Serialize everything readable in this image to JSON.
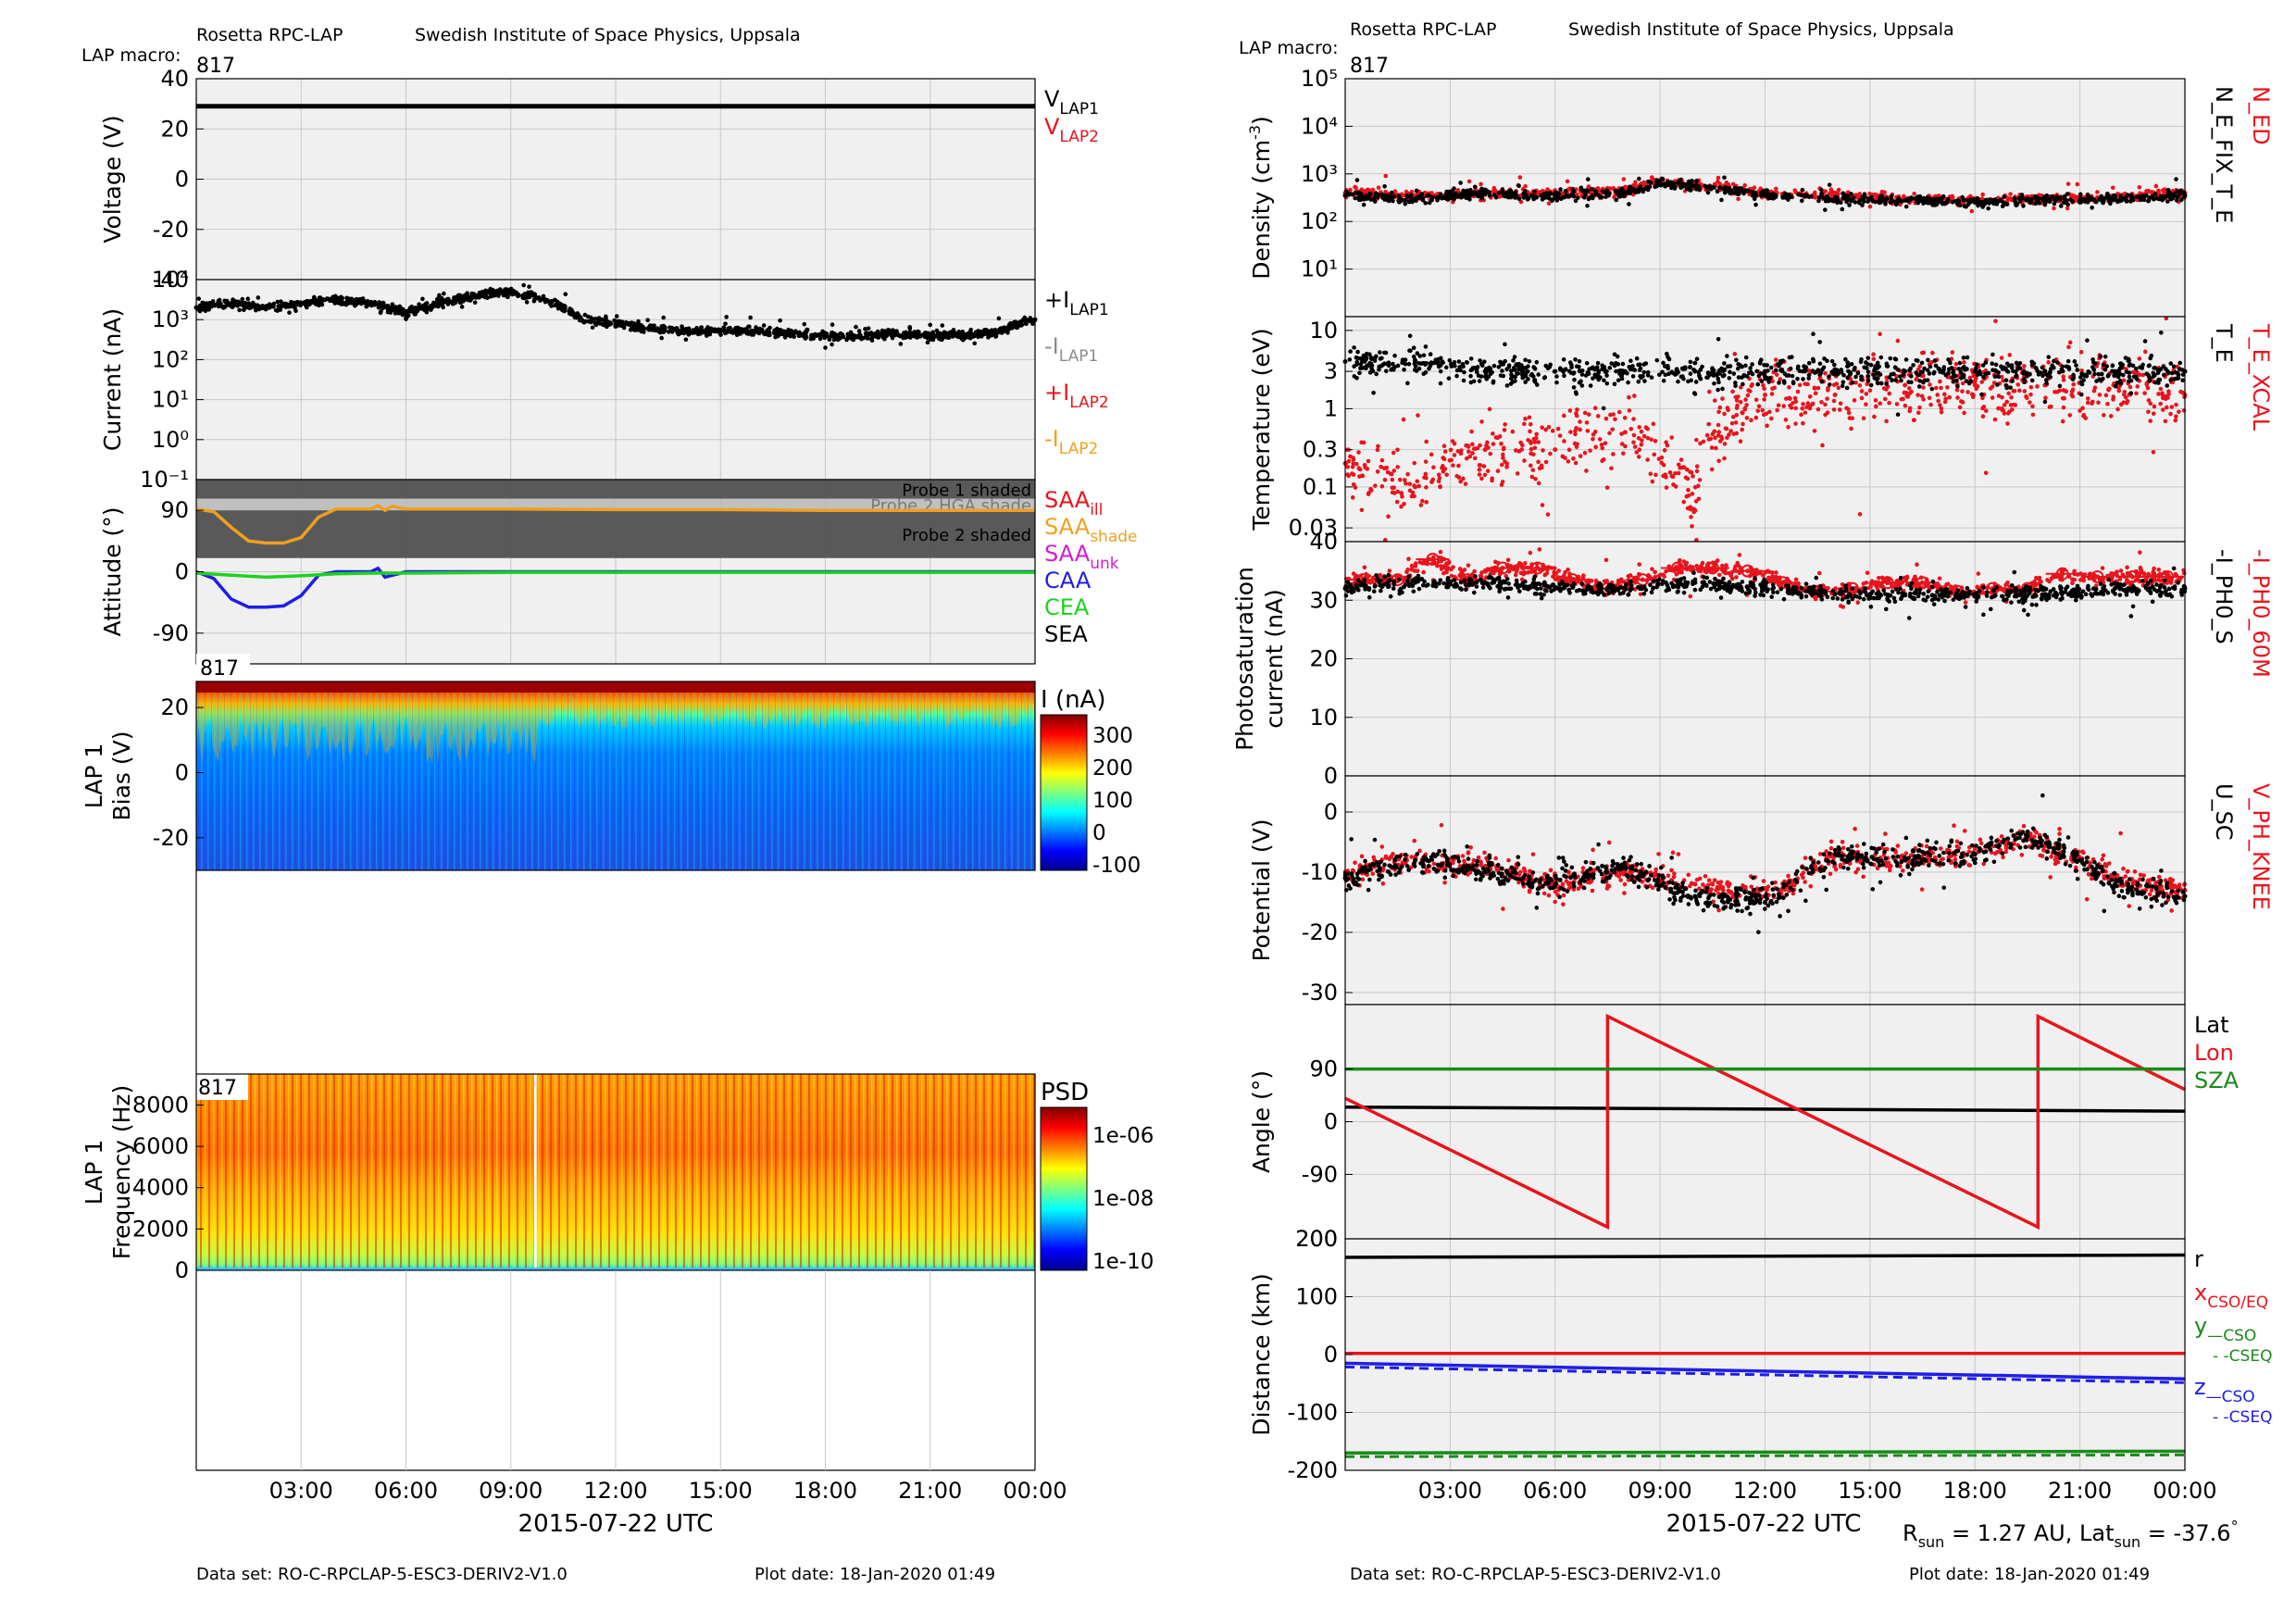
{
  "colors": {
    "panel_bg": "#f0f0f0",
    "grid": "#c8c8c8",
    "black": "#000000",
    "red": "#e8141c",
    "grey_label": "#8c8c8c",
    "orange": "#f0a020",
    "magenta": "#d21ed2",
    "blue": "#1e1ee6",
    "green": "#1ed21e",
    "darkgreen": "#1a8a1a",
    "shade_dark": "#505050",
    "shade_mid": "#8c8c8c",
    "shade_light": "#c8c8c8"
  },
  "left": {
    "header_instrument": "Rosetta RPC-LAP",
    "header_institute": "Swedish Institute of Space Physics, Uppsala",
    "macro_label": "LAP macro:",
    "macro_value": "817",
    "footer_dataset": "Data set: RO-C-RPCLAP-5-ESC3-DERIV2-V1.0",
    "footer_plotdate": "Plot date: 18-Jan-2020 01:49",
    "xlabel": "2015-07-22 UTC",
    "xticks": [
      "03:00",
      "06:00",
      "09:00",
      "12:00",
      "15:00",
      "18:00",
      "21:00",
      "00:00"
    ]
  },
  "right": {
    "header_instrument": "Rosetta RPC-LAP",
    "header_institute": "Swedish Institute of Space Physics, Uppsala",
    "macro_label": "LAP macro:",
    "macro_value": "817",
    "footer_dataset": "Data set: RO-C-RPCLAP-5-ESC3-DERIV2-V1.0",
    "footer_plotdate": "Plot date: 18-Jan-2020 01:49",
    "xlabel": "2015-07-22 UTC",
    "rsun_text": "R",
    "rsun_sub": "sun",
    "rsun_value": " = 1.27 AU, Lat",
    "lat_sub": "sun",
    "lat_value": " = -37.6",
    "degree": "°",
    "xticks": [
      "03:00",
      "06:00",
      "09:00",
      "12:00",
      "15:00",
      "18:00",
      "21:00",
      "00:00"
    ]
  },
  "chart_data": [
    {
      "type": "line",
      "ylabel": "Voltage (V)",
      "ylim": [
        -40,
        40
      ],
      "yticks": [
        "40",
        "20",
        "0",
        "-20",
        "-40"
      ],
      "grid": true,
      "series": [
        {
          "name": "V",
          "name_sub": "LAP1",
          "color": "#000000",
          "x_hours": [
            0,
            24
          ],
          "values": [
            29,
            29
          ]
        },
        {
          "name": "V",
          "name_sub": "LAP2",
          "color": "#e8141c",
          "x_hours": [],
          "values": []
        }
      ]
    },
    {
      "type": "scatter",
      "ylabel": "Current (nA)",
      "yscale": "log",
      "ylim": [
        0.1,
        10000
      ],
      "yticks": [
        "10⁴",
        "10³",
        "10²",
        "10¹",
        "10⁰",
        "10⁻¹"
      ],
      "grid": true,
      "series": [
        {
          "name": "+I",
          "name_sub": "LAP1",
          "color": "#000000",
          "x_hours": [
            0,
            1,
            2,
            3,
            4,
            5,
            6,
            7,
            8,
            9,
            10,
            11,
            12,
            13,
            14,
            15,
            16,
            17,
            18,
            19,
            20,
            21,
            22,
            23,
            24
          ],
          "values": [
            2000,
            2500,
            2000,
            2500,
            3000,
            2500,
            1500,
            2500,
            4000,
            5000,
            3000,
            1000,
            800,
            600,
            500,
            550,
            500,
            450,
            400,
            400,
            450,
            400,
            400,
            500,
            1000
          ]
        },
        {
          "name": "-I",
          "name_sub": "LAP1",
          "color": "#8c8c8c",
          "x_hours": [],
          "values": []
        },
        {
          "name": "+I",
          "name_sub": "LAP2",
          "color": "#e8141c",
          "x_hours": [],
          "values": []
        },
        {
          "name": "-I",
          "name_sub": "LAP2",
          "color": "#f0a020",
          "x_hours": [],
          "values": []
        }
      ]
    },
    {
      "type": "line",
      "ylabel": "Attitude (°)",
      "ylim": [
        -135,
        135
      ],
      "yticks": [
        "90",
        "0",
        "-90"
      ],
      "grid": true,
      "shade_bands": [
        {
          "label": "Probe 1 shaded",
          "ylim": [
            107,
            135
          ],
          "shade": "dark"
        },
        {
          "label": "Probe 2 HGA shade",
          "ylim": [
            90,
            107
          ],
          "shade": "mid"
        },
        {
          "label": "Probe 2 shaded",
          "ylim": [
            20,
            90
          ],
          "shade": "dark"
        }
      ],
      "series": [
        {
          "name": "SAA",
          "name_sub": "ill",
          "color": "#e8141c",
          "x_hours": [],
          "values": []
        },
        {
          "name": "SAA",
          "name_sub": "shade",
          "color": "#f0a020",
          "x_hours": [
            0,
            0.5,
            1,
            1.5,
            2,
            2.5,
            3,
            3.5,
            4,
            5,
            5.2,
            5.4,
            5.6,
            6,
            9,
            12,
            15,
            18,
            21,
            24
          ],
          "values": [
            92,
            88,
            65,
            45,
            42,
            42,
            50,
            80,
            92,
            92,
            97,
            90,
            96,
            92,
            92,
            91,
            91,
            90,
            90,
            90
          ]
        },
        {
          "name": "SAA",
          "name_sub": "unk",
          "color": "#d21ed2",
          "x_hours": [],
          "values": []
        },
        {
          "name": "CAA",
          "name_sub": "",
          "color": "#1e1ee6",
          "x_hours": [
            0,
            0.5,
            1,
            1.5,
            2,
            2.5,
            3,
            3.5,
            4,
            5,
            5.2,
            5.4,
            6,
            9,
            12,
            15,
            18,
            21,
            24
          ],
          "values": [
            0,
            -10,
            -40,
            -52,
            -52,
            -50,
            -35,
            -5,
            0,
            0,
            5,
            -8,
            0,
            0,
            0,
            0,
            0,
            0,
            0
          ]
        },
        {
          "name": "CEA",
          "name_sub": "",
          "color": "#1ed21e",
          "x_hours": [
            0,
            1,
            2,
            3,
            4,
            5,
            6,
            9,
            12,
            15,
            18,
            21,
            24
          ],
          "values": [
            -2,
            -5,
            -8,
            -6,
            -3,
            -2,
            -2,
            -1,
            -1,
            -1,
            -1,
            -1,
            -1
          ]
        },
        {
          "name": "SEA",
          "name_sub": "",
          "color": "#000000",
          "x_hours": [],
          "values": []
        }
      ]
    },
    {
      "type": "heatmap",
      "ylabel_line1": "LAP 1",
      "ylabel_line2": "Bias (V)",
      "ylim": [
        -30,
        28
      ],
      "yticks": [
        "20",
        "0",
        "-20"
      ],
      "macro_tag": "817",
      "colorbar_label": "I (nA)",
      "colorbar_ticks": [
        "300",
        "200",
        "100",
        "0",
        "-100"
      ],
      "colorbar_range": [
        -100,
        320
      ]
    },
    {
      "type": "heatmap",
      "ylabel_line1": "LAP 1",
      "ylabel_line2": "Frequency (Hz)",
      "ylim": [
        0,
        9500
      ],
      "yticks": [
        "8000",
        "6000",
        "4000",
        "2000",
        "0"
      ],
      "macro_tag": "817",
      "colorbar_label": "PSD",
      "colorbar_ticks": [
        "1e-06",
        "1e-08",
        "1e-10"
      ]
    },
    {
      "type": "scatter",
      "ylabel": "Density (cm",
      "ylabel_sup": "-3",
      "ylabel_end": ")",
      "yscale": "log",
      "ylim": [
        1,
        100000
      ],
      "yticks": [
        "10⁵",
        "10⁴",
        "10³",
        "10²",
        "10¹"
      ],
      "grid": true,
      "series": [
        {
          "name": "N_ED",
          "color": "#e8141c",
          "x_hours": [
            0,
            2,
            4,
            6,
            8,
            9,
            10,
            12,
            14,
            16,
            18,
            20,
            22,
            24
          ],
          "values": [
            400,
            350,
            400,
            380,
            450,
            700,
            600,
            400,
            350,
            300,
            280,
            300,
            320,
            400
          ]
        },
        {
          "name": "N_E_FIX_T_E",
          "color": "#000000",
          "x_hours": [
            0,
            2,
            4,
            6,
            8,
            9,
            10,
            12,
            14,
            16,
            18,
            20,
            22,
            24
          ],
          "values": [
            350,
            300,
            380,
            350,
            400,
            650,
            550,
            350,
            300,
            280,
            250,
            280,
            300,
            350
          ]
        }
      ]
    },
    {
      "type": "scatter",
      "ylabel": "Temperature (eV)",
      "yscale": "log",
      "ylim": [
        0.02,
        15
      ],
      "yticks": [
        "10",
        "3",
        "1",
        "0.3",
        "0.1",
        "0.03"
      ],
      "grid": true,
      "series": [
        {
          "name": "T_E_XCAL",
          "color": "#e8141c",
          "x_hours": [
            0,
            2,
            4,
            6,
            8,
            10,
            12,
            14,
            16,
            18,
            20,
            22,
            24
          ],
          "values": [
            0.2,
            0.1,
            0.3,
            0.3,
            0.5,
            0.05,
            1.5,
            1.5,
            2,
            2,
            2,
            2,
            1.5
          ]
        },
        {
          "name": "T_E",
          "color": "#000000",
          "x_hours": [
            0,
            2,
            4,
            6,
            8,
            10,
            12,
            14,
            16,
            18,
            20,
            22,
            24
          ],
          "values": [
            4,
            4,
            3,
            3,
            3,
            3,
            3,
            3,
            3,
            3,
            3,
            3,
            3
          ]
        }
      ]
    },
    {
      "type": "scatter",
      "ylabel": "Photosaturation",
      "ylabel2": "current (nA)",
      "ylim": [
        0,
        40
      ],
      "yticks": [
        "40",
        "30",
        "20",
        "10",
        "0"
      ],
      "grid": true,
      "series": [
        {
          "name": "-I_PH0_60M",
          "color": "#e8141c",
          "x_hours": [
            0.5,
            1.5,
            2.5,
            3.5,
            4.5,
            5.5,
            6.5,
            7.5,
            8.5,
            9.5,
            10.5,
            11.5,
            12.5,
            13.5,
            14.5,
            15.5,
            16.5,
            17.5,
            18.5,
            19.5,
            20.5,
            21.5,
            22.5,
            23.5
          ],
          "values": [
            33.5,
            33.5,
            37,
            33.5,
            35.5,
            35.5,
            33.5,
            32,
            33.5,
            35.5,
            35.5,
            35,
            33,
            31.5,
            32,
            33,
            33,
            31.5,
            32,
            32,
            34.5,
            34,
            34,
            34
          ]
        },
        {
          "name": "-I_PH0_S",
          "color": "#000000",
          "x_hours": [
            0,
            2,
            4,
            6,
            8,
            10,
            12,
            14,
            16,
            18,
            20,
            22,
            24
          ],
          "values": [
            32,
            33,
            33,
            32,
            32,
            33,
            32,
            31,
            31,
            31,
            31,
            32,
            32
          ]
        }
      ]
    },
    {
      "type": "scatter",
      "ylabel": "Potential (V)",
      "ylim": [
        -32,
        6
      ],
      "yticks": [
        "0",
        "-10",
        "-20",
        "-30"
      ],
      "grid": true,
      "series": [
        {
          "name": "V_PH_KNEE",
          "color": "#e8141c",
          "x_hours": [
            0,
            2,
            4,
            6,
            8,
            10,
            12,
            14,
            16,
            18,
            19.5,
            21,
            22,
            24
          ],
          "values": [
            -10,
            -8,
            -9,
            -12,
            -10,
            -12,
            -14,
            -7,
            -8,
            -7,
            -4,
            -8,
            -11,
            -13
          ]
        },
        {
          "name": "U_SC",
          "color": "#000000",
          "x_hours": [
            0,
            2,
            4,
            6,
            8,
            10,
            12,
            14,
            16,
            18,
            19.5,
            21,
            22,
            24
          ],
          "values": [
            -11,
            -8,
            -10,
            -12,
            -9,
            -14,
            -15,
            -7,
            -8,
            -7,
            -4,
            -8,
            -12,
            -14
          ]
        }
      ]
    },
    {
      "type": "line",
      "ylabel": "Angle (°)",
      "ylim": [
        -200,
        200
      ],
      "yticks": [
        "90",
        "0",
        "-90",
        "200"
      ],
      "grid": true,
      "series": [
        {
          "name": "Lat",
          "color": "#000000",
          "x_hours": [
            0,
            24
          ],
          "values": [
            25,
            18
          ]
        },
        {
          "name": "Lon",
          "color": "#e8141c",
          "x_hours": [
            0,
            7.5,
            7.5,
            19.8,
            19.8,
            24
          ],
          "values": [
            40,
            -180,
            180,
            -180,
            180,
            55
          ]
        },
        {
          "name": "SZA",
          "color": "#1a8a1a",
          "x_hours": [
            0,
            24
          ],
          "values": [
            90,
            90
          ]
        }
      ]
    },
    {
      "type": "line",
      "ylabel": "Distance (km)",
      "ylim": [
        -200,
        200
      ],
      "yticks": [
        "200",
        "100",
        "0",
        "-100",
        "-200"
      ],
      "grid": true,
      "series": [
        {
          "name": "r",
          "color": "#000000",
          "x_hours": [
            0,
            24
          ],
          "values": [
            168,
            172
          ]
        },
        {
          "name": "x",
          "name_sub": "CSO/EQ",
          "color": "#e8141c",
          "x_hours": [
            0,
            24
          ],
          "values": [
            2,
            2
          ]
        },
        {
          "name": "y",
          "name_sub": "—CSO",
          "name2": "- -CSEQ",
          "color": "#1a8a1a",
          "x_hours": [
            0,
            24
          ],
          "values": [
            -170,
            -167
          ]
        },
        {
          "name": "z",
          "name_sub": "—CSO",
          "name2": "- -CSEQ",
          "color": "#1e1ee6",
          "x_hours": [
            0,
            24
          ],
          "values": [
            -15,
            -42
          ]
        }
      ]
    }
  ]
}
